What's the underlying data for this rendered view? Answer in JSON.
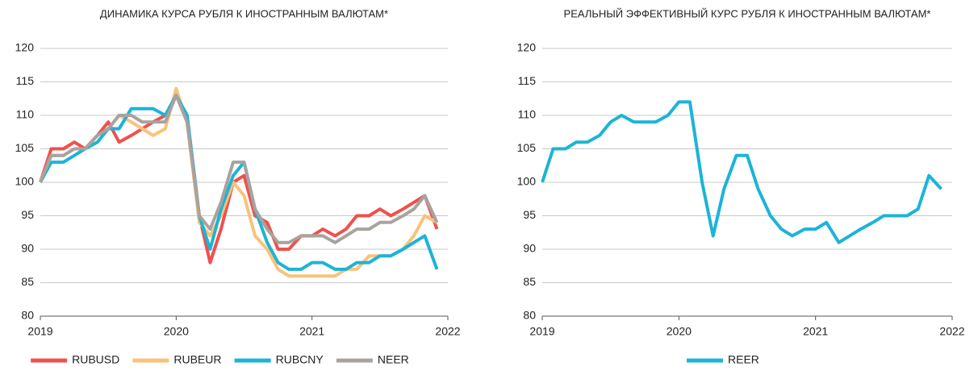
{
  "chart_data": [
    {
      "type": "line",
      "title": "ДИНАМИКА КУРСА РУБЛЯ К ИНОСТРАННЫМ ВАЛЮТАМ*",
      "x": [
        2019.0,
        2019.08,
        2019.17,
        2019.25,
        2019.33,
        2019.42,
        2019.5,
        2019.58,
        2019.67,
        2019.75,
        2019.83,
        2019.92,
        2020.0,
        2020.08,
        2020.17,
        2020.25,
        2020.33,
        2020.42,
        2020.5,
        2020.58,
        2020.67,
        2020.75,
        2020.83,
        2020.92,
        2021.0,
        2021.08,
        2021.17,
        2021.25,
        2021.33,
        2021.42,
        2021.5,
        2021.58,
        2021.67,
        2021.75,
        2021.83,
        2021.92
      ],
      "series": [
        {
          "name": "RUBUSD",
          "color": "#f0504d",
          "values": [
            100,
            105,
            105,
            106,
            105,
            107,
            109,
            106,
            107,
            108,
            109,
            110,
            113,
            110,
            95,
            88,
            93,
            100,
            101,
            95,
            94,
            90,
            90,
            92,
            92,
            93,
            92,
            93,
            95,
            95,
            96,
            95,
            96,
            97,
            98,
            93
          ]
        },
        {
          "name": "RUBEUR",
          "color": "#f9c27b",
          "values": [
            100,
            104,
            104,
            105,
            105,
            106,
            108,
            110,
            109,
            108,
            107,
            108,
            114,
            109,
            94,
            92,
            95,
            100,
            98,
            92,
            90,
            87,
            86,
            86,
            86,
            86,
            86,
            87,
            87,
            89,
            89,
            89,
            90,
            92,
            95,
            94
          ]
        },
        {
          "name": "RUBCNY",
          "color": "#1cb4d6",
          "values": [
            100,
            103,
            103,
            104,
            105,
            106,
            108,
            108,
            111,
            111,
            111,
            110,
            113,
            110,
            95,
            90,
            96,
            101,
            103,
            96,
            91,
            88,
            87,
            87,
            88,
            88,
            87,
            87,
            88,
            88,
            89,
            89,
            90,
            91,
            92,
            87
          ]
        },
        {
          "name": "NEER",
          "color": "#a8a39e",
          "values": [
            100,
            104,
            104,
            105,
            105,
            107,
            108,
            110,
            110,
            109,
            109,
            109,
            113,
            109,
            95,
            93,
            97,
            103,
            103,
            96,
            93,
            91,
            91,
            92,
            92,
            92,
            91,
            92,
            93,
            93,
            94,
            94,
            95,
            96,
            98,
            94
          ]
        }
      ],
      "xlim": [
        2019,
        2022
      ],
      "xticks": [
        2019,
        2020,
        2021,
        2022
      ],
      "ylim": [
        80,
        120
      ],
      "yticks": [
        80,
        85,
        90,
        95,
        100,
        105,
        110,
        115,
        120
      ],
      "grid": true
    },
    {
      "type": "line",
      "title": "РЕАЛЬНЫЙ ЭФФЕКТИВНЫЙ КУРС РУБЛЯ К ИНОСТРАННЫМ ВАЛЮТАМ*",
      "x": [
        2019.0,
        2019.08,
        2019.17,
        2019.25,
        2019.33,
        2019.42,
        2019.5,
        2019.58,
        2019.67,
        2019.75,
        2019.83,
        2019.92,
        2020.0,
        2020.08,
        2020.17,
        2020.25,
        2020.33,
        2020.42,
        2020.5,
        2020.58,
        2020.67,
        2020.75,
        2020.83,
        2020.92,
        2021.0,
        2021.08,
        2021.17,
        2021.25,
        2021.33,
        2021.42,
        2021.5,
        2021.58,
        2021.67,
        2021.75,
        2021.83,
        2021.92
      ],
      "series": [
        {
          "name": "REER",
          "color": "#1cb4d6",
          "values": [
            100,
            105,
            105,
            106,
            106,
            107,
            109,
            110,
            109,
            109,
            109,
            110,
            112,
            112,
            100,
            92,
            99,
            104,
            104,
            99,
            95,
            93,
            92,
            93,
            93,
            94,
            91,
            92,
            93,
            94,
            95,
            95,
            95,
            96,
            101,
            99
          ]
        }
      ],
      "xlim": [
        2019,
        2022
      ],
      "xticks": [
        2019,
        2020,
        2021,
        2022
      ],
      "ylim": [
        80,
        120
      ],
      "yticks": [
        80,
        85,
        90,
        95,
        100,
        105,
        110,
        115,
        120
      ],
      "grid": true
    }
  ]
}
